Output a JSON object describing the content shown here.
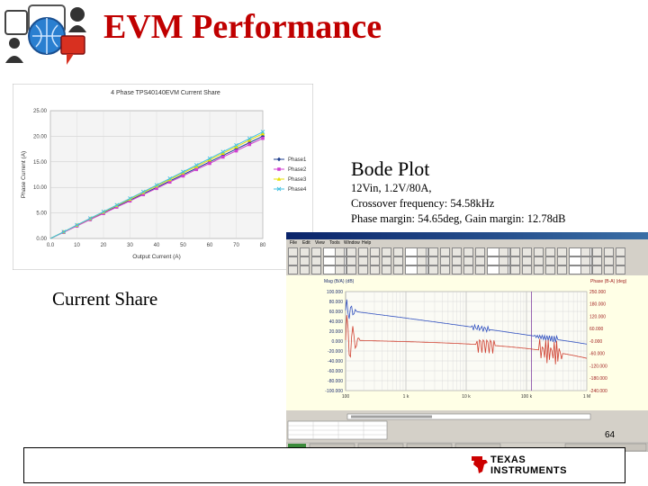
{
  "slide": {
    "title": "EVM Performance",
    "page_number": "64",
    "current_share_label": "Current Share"
  },
  "bode": {
    "title": "Bode Plot",
    "lines": [
      "12Vin, 1.2V/80A,",
      "Crossover frequency: 54.58kHz",
      "Phase margin: 54.65deg, Gain margin: 12.78dB"
    ]
  },
  "footer": {
    "brand_line1": "TEXAS",
    "brand_line2": "INSTRUMENTS",
    "brand_color": "#cc0000"
  },
  "app": {
    "menu": [
      "File",
      "Edit",
      "View",
      "Tools",
      "Window",
      "Help"
    ],
    "left_axis_label": "Mag (B/A) (dB)",
    "right_axis_label": "Phase (B-A) (deg)",
    "left_ticks": [
      "100.000",
      "80.000",
      "60.000",
      "40.000",
      "20.000",
      "0.000",
      "-20.000",
      "-40.000",
      "-60.000",
      "-80.000",
      "-100.000"
    ],
    "right_ticks": [
      "250.000",
      "180.000",
      "120.000",
      "60.000",
      "-0.000",
      "-60.000",
      "-120.000",
      "-180.000",
      "-240.000"
    ],
    "x_ticks": [
      "100",
      "1 k",
      "10 k",
      "100 k",
      "1 M"
    ]
  },
  "chart_data": {
    "type": "line",
    "title": "4 Phase TPS40140EVM Current Share",
    "xlabel": "Output Current (A)",
    "ylabel": "Phase Current (A)",
    "xlim": [
      0,
      80
    ],
    "ylim": [
      0,
      25
    ],
    "x_ticks": [
      "0.0",
      "10",
      "20",
      "30",
      "40",
      "50",
      "60",
      "70",
      "80"
    ],
    "y_ticks": [
      "0.00",
      "5.00",
      "10.00",
      "15.00",
      "20.00",
      "25.00"
    ],
    "legend_position": "right",
    "x": [
      0,
      5,
      10,
      15,
      20,
      25,
      30,
      35,
      40,
      45,
      50,
      55,
      60,
      65,
      70,
      75,
      80
    ],
    "series": [
      {
        "name": "Phase1",
        "color": "#1f3f8f",
        "marker": "diamond",
        "values": [
          0.0,
          1.25,
          2.5,
          3.75,
          5.0,
          6.25,
          7.5,
          8.75,
          10.0,
          11.25,
          12.5,
          13.75,
          15.0,
          16.25,
          17.5,
          18.75,
          20.0
        ]
      },
      {
        "name": "Phase2",
        "color": "#d040d0",
        "marker": "square",
        "values": [
          0.0,
          1.2,
          2.45,
          3.7,
          4.9,
          6.15,
          7.35,
          8.6,
          9.8,
          11.05,
          12.25,
          13.5,
          14.7,
          15.95,
          17.15,
          18.4,
          19.6
        ]
      },
      {
        "name": "Phase3",
        "color": "#e8e000",
        "marker": "triangle",
        "values": [
          0.0,
          1.3,
          2.6,
          3.9,
          5.15,
          6.45,
          7.7,
          9.0,
          10.3,
          11.55,
          12.85,
          14.1,
          15.4,
          16.7,
          17.95,
          19.25,
          20.5
        ]
      },
      {
        "name": "Phase4",
        "color": "#40c0e0",
        "marker": "x",
        "values": [
          0.0,
          1.3,
          2.65,
          3.95,
          5.25,
          6.55,
          7.85,
          9.15,
          10.45,
          11.75,
          13.05,
          14.35,
          15.65,
          16.95,
          18.25,
          19.55,
          20.85
        ]
      }
    ]
  }
}
